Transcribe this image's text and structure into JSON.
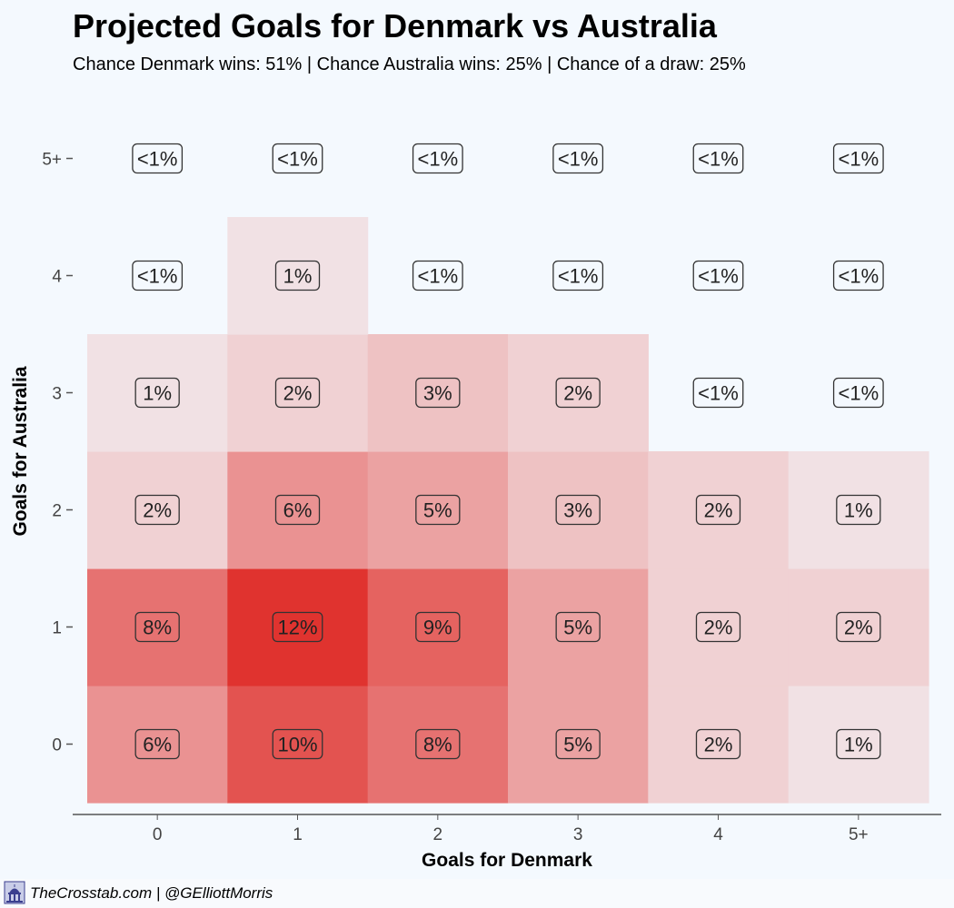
{
  "header": {
    "title": "Projected Goals for Denmark vs Australia",
    "subtitle": "Chance Denmark wins: 51% | Chance Australia wins: 25% | Chance of a draw: 25%"
  },
  "footer": {
    "credit": "TheCrosstab.com | @GElliottMorris",
    "logo_icon": "capitol-building-icon"
  },
  "colors": {
    "background": "#f4f9fe",
    "low": "#f3f1f4",
    "high": "#e0332f",
    "text": "#222222"
  },
  "chart_data": {
    "type": "heatmap",
    "title": "Projected Goals for Denmark vs Australia",
    "subtitle": "Chance Denmark wins: 51% | Chance Australia wins: 25% | Chance of a draw: 25%",
    "xlabel": "Goals for Denmark",
    "ylabel": "Goals for Australia",
    "x_categories": [
      "0",
      "1",
      "2",
      "3",
      "4",
      "5+"
    ],
    "y_categories": [
      "0",
      "1",
      "2",
      "3",
      "4",
      "5+"
    ],
    "grid": false,
    "cells": [
      {
        "x": "0",
        "y": "0",
        "value": 6,
        "label": "6%"
      },
      {
        "x": "1",
        "y": "0",
        "value": 10,
        "label": "10%"
      },
      {
        "x": "2",
        "y": "0",
        "value": 8,
        "label": "8%"
      },
      {
        "x": "3",
        "y": "0",
        "value": 5,
        "label": "5%"
      },
      {
        "x": "4",
        "y": "0",
        "value": 2,
        "label": "2%"
      },
      {
        "x": "5+",
        "y": "0",
        "value": 1,
        "label": "1%"
      },
      {
        "x": "0",
        "y": "1",
        "value": 8,
        "label": "8%"
      },
      {
        "x": "1",
        "y": "1",
        "value": 12,
        "label": "12%"
      },
      {
        "x": "2",
        "y": "1",
        "value": 9,
        "label": "9%"
      },
      {
        "x": "3",
        "y": "1",
        "value": 5,
        "label": "5%"
      },
      {
        "x": "4",
        "y": "1",
        "value": 2,
        "label": "2%"
      },
      {
        "x": "5+",
        "y": "1",
        "value": 2,
        "label": "2%"
      },
      {
        "x": "0",
        "y": "2",
        "value": 2,
        "label": "2%"
      },
      {
        "x": "1",
        "y": "2",
        "value": 6,
        "label": "6%"
      },
      {
        "x": "2",
        "y": "2",
        "value": 5,
        "label": "5%"
      },
      {
        "x": "3",
        "y": "2",
        "value": 3,
        "label": "3%"
      },
      {
        "x": "4",
        "y": "2",
        "value": 2,
        "label": "2%"
      },
      {
        "x": "5+",
        "y": "2",
        "value": 1,
        "label": "1%"
      },
      {
        "x": "0",
        "y": "3",
        "value": 1,
        "label": "1%"
      },
      {
        "x": "1",
        "y": "3",
        "value": 2,
        "label": "2%"
      },
      {
        "x": "2",
        "y": "3",
        "value": 3,
        "label": "3%"
      },
      {
        "x": "3",
        "y": "3",
        "value": 2,
        "label": "2%"
      },
      {
        "x": "4",
        "y": "3",
        "value": 0,
        "label": "<1%"
      },
      {
        "x": "5+",
        "y": "3",
        "value": 0,
        "label": "<1%"
      },
      {
        "x": "0",
        "y": "4",
        "value": 0,
        "label": "<1%"
      },
      {
        "x": "1",
        "y": "4",
        "value": 1,
        "label": "1%"
      },
      {
        "x": "2",
        "y": "4",
        "value": 0,
        "label": "<1%"
      },
      {
        "x": "3",
        "y": "4",
        "value": 0,
        "label": "<1%"
      },
      {
        "x": "4",
        "y": "4",
        "value": 0,
        "label": "<1%"
      },
      {
        "x": "5+",
        "y": "4",
        "value": 0,
        "label": "<1%"
      },
      {
        "x": "0",
        "y": "5+",
        "value": 0,
        "label": "<1%"
      },
      {
        "x": "1",
        "y": "5+",
        "value": 0,
        "label": "<1%"
      },
      {
        "x": "2",
        "y": "5+",
        "value": 0,
        "label": "<1%"
      },
      {
        "x": "3",
        "y": "5+",
        "value": 0,
        "label": "<1%"
      },
      {
        "x": "4",
        "y": "5+",
        "value": 0,
        "label": "<1%"
      },
      {
        "x": "5+",
        "y": "5+",
        "value": 0,
        "label": "<1%"
      }
    ]
  }
}
